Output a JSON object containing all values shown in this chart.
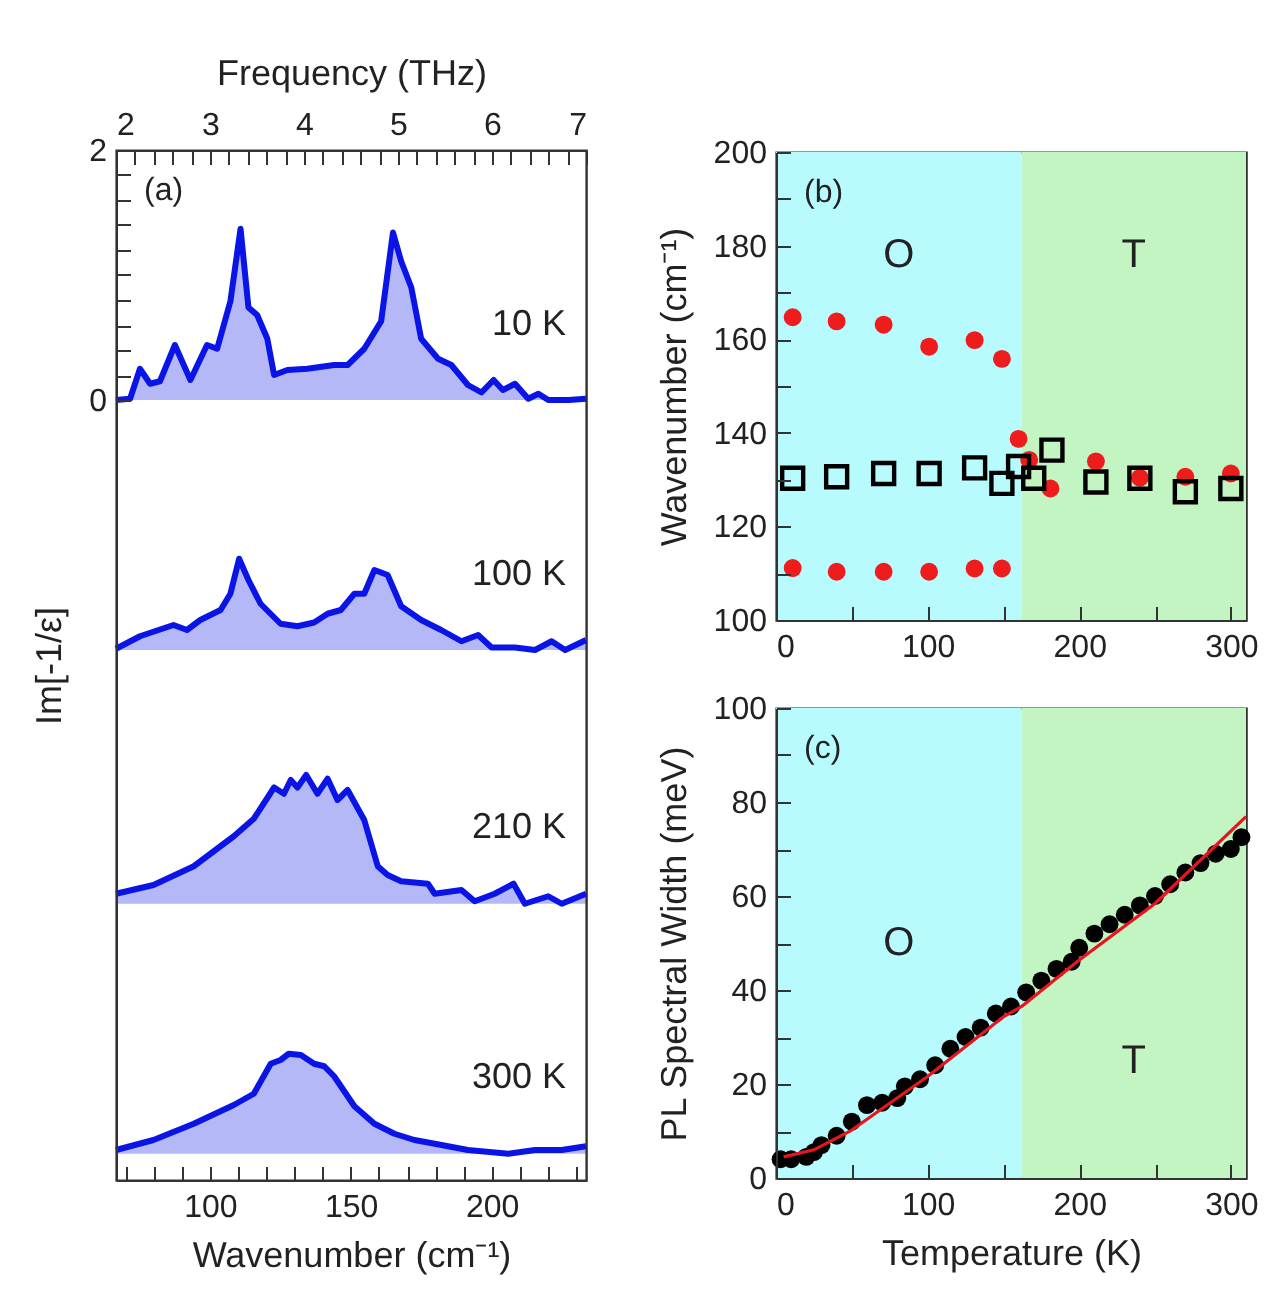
{
  "chart_data": [
    {
      "type": "line",
      "xlabel": "Wavenumber (cm⁻¹)",
      "ylabel": "Im[-1/ε]",
      "x2label": "Frequency (THz)",
      "annotations": [
        "(a)"
      ],
      "xlim": [
        66.7,
        233.5
      ],
      "ylim": [
        -6.24,
        2
      ],
      "x2lim": [
        2,
        7
      ],
      "xticks": [
        {
          "value": 70,
          "label": null
        },
        {
          "value": 80,
          "label": null
        },
        {
          "value": 90,
          "label": null
        },
        100,
        {
          "value": 110,
          "label": null
        },
        {
          "value": 120,
          "label": null
        },
        {
          "value": 130,
          "label": null
        },
        {
          "value": 140,
          "label": null
        },
        150,
        {
          "value": 160,
          "label": null
        },
        {
          "value": 170,
          "label": null
        },
        {
          "value": 180,
          "label": null
        },
        {
          "value": 190,
          "label": null
        },
        200,
        {
          "value": 210,
          "label": null
        },
        {
          "value": 220,
          "label": null
        },
        {
          "value": 230,
          "label": null
        }
      ],
      "x2ticks": [
        2,
        {
          "value": 2.2,
          "label": null
        },
        {
          "value": 2.4,
          "label": null
        },
        {
          "value": 2.6,
          "label": null
        },
        {
          "value": 2.8,
          "label": null
        },
        3,
        {
          "value": 3.2,
          "label": null
        },
        {
          "value": 3.4,
          "label": null
        },
        {
          "value": 3.6,
          "label": null
        },
        {
          "value": 3.8,
          "label": null
        },
        4,
        {
          "value": 4.2,
          "label": null
        },
        {
          "value": 4.4,
          "label": null
        },
        {
          "value": 4.6,
          "label": null
        },
        {
          "value": 4.8,
          "label": null
        },
        5,
        {
          "value": 5.2,
          "label": null
        },
        {
          "value": 5.4,
          "label": null
        },
        {
          "value": 5.6,
          "label": null
        },
        {
          "value": 5.8,
          "label": null
        },
        6,
        {
          "value": 6.2,
          "label": null
        },
        {
          "value": 6.4,
          "label": null
        },
        {
          "value": 6.6,
          "label": null
        },
        {
          "value": 6.8,
          "label": null
        },
        7
      ],
      "yticks": [
        0,
        {
          "value": 0.2,
          "label": null
        },
        {
          "value": 0.4,
          "label": null
        },
        {
          "value": 0.6,
          "label": null
        },
        {
          "value": 0.8,
          "label": null
        },
        {
          "value": 1,
          "label": null
        },
        {
          "value": 1.2,
          "label": null
        },
        {
          "value": 1.4,
          "label": null
        },
        {
          "value": 1.6,
          "label": null
        },
        {
          "value": 1.8,
          "label": null
        },
        2
      ],
      "series": [
        {
          "name": "10 K",
          "color": "#0a14e6",
          "lower": [
            0,
            0,
            0,
            0,
            0,
            0,
            0,
            0,
            0,
            0,
            0,
            0,
            0,
            0,
            0,
            0,
            0,
            0,
            0,
            0,
            0,
            0,
            0,
            0,
            0,
            0,
            0,
            0,
            0,
            0,
            0,
            0,
            0,
            0,
            0,
            0,
            0
          ],
          "upper": [
            0,
            0.01,
            0.25,
            0.13,
            0.15,
            0.44,
            0.16,
            0.44,
            0.41,
            0.79,
            1.37,
            0.74,
            0.68,
            0.49,
            0.2,
            0.24,
            0.25,
            0.28,
            0.28,
            0.41,
            0.63,
            1.34,
            1.11,
            0.9,
            0.49,
            0.33,
            0.28,
            0.12,
            0.06,
            0.16,
            0.08,
            0.13,
            0.01,
            0.05,
            0,
            0,
            0.01
          ],
          "x": [
            66.7,
            71.7,
            75.2,
            78.8,
            82.3,
            87.6,
            93.1,
            99.0,
            102.6,
            107.3,
            110.9,
            113.7,
            116.8,
            120.4,
            122.8,
            127.5,
            134.6,
            144.1,
            148.9,
            154.8,
            160.8,
            165.0,
            167.9,
            171.5,
            175.0,
            181.0,
            185.7,
            191.6,
            196.4,
            200.7,
            204.0,
            208.3,
            213.0,
            216.6,
            220.1,
            227.3,
            233.5
          ],
          "values": [
            0,
            0.01,
            0.25,
            0.13,
            0.15,
            0.44,
            0.16,
            0.44,
            0.41,
            0.79,
            1.37,
            0.74,
            0.68,
            0.49,
            0.2,
            0.24,
            0.25,
            0.28,
            0.28,
            0.41,
            0.63,
            1.34,
            1.11,
            0.9,
            0.49,
            0.33,
            0.28,
            0.12,
            0.06,
            0.16,
            0.08,
            0.13,
            0.01,
            0.05,
            0,
            0,
            0.01
          ]
        },
        {
          "name": "100 K",
          "color": "#0a14e6",
          "lower": [
            -2,
            -2,
            -2,
            -2,
            -2,
            -2,
            -2,
            -2,
            -2,
            -2,
            -2,
            -2,
            -2,
            -2,
            -2,
            -2,
            -2,
            -2,
            -2,
            -2,
            -2,
            -2,
            -2,
            -2,
            -2,
            -2,
            -2,
            -2,
            -2,
            -2
          ],
          "upper": [
            -1.99,
            -1.89,
            -1.8,
            -1.84,
            -1.76,
            -1.68,
            -1.55,
            -1.27,
            -1.44,
            -1.63,
            -1.79,
            -1.81,
            -1.78,
            -1.71,
            -1.68,
            -1.55,
            -1.55,
            -1.36,
            -1.4,
            -1.65,
            -1.76,
            -1.84,
            -1.93,
            -1.88,
            -1.98,
            -1.98,
            -2.0,
            -1.93,
            -2.0,
            -1.92
          ],
          "x": [
            66.7,
            75.2,
            87.1,
            91.9,
            96.6,
            103.8,
            107.3,
            110.4,
            113.7,
            118.0,
            125.1,
            131.1,
            137.0,
            141.8,
            146.5,
            151.3,
            154.8,
            158.4,
            163.1,
            167.9,
            175.0,
            182.1,
            189.3,
            195.2,
            200.0,
            208.3,
            215.4,
            221.3,
            226.1,
            233.5
          ],
          "values": [
            -1.99,
            -1.89,
            -1.8,
            -1.84,
            -1.76,
            -1.68,
            -1.55,
            -1.27,
            -1.44,
            -1.63,
            -1.79,
            -1.81,
            -1.78,
            -1.71,
            -1.68,
            -1.55,
            -1.55,
            -1.36,
            -1.4,
            -1.65,
            -1.76,
            -1.84,
            -1.93,
            -1.88,
            -1.98,
            -1.98,
            -2.0,
            -1.93,
            -2.0,
            -1.92
          ]
        },
        {
          "name": "210 K",
          "color": "#0a14e6",
          "lower": [
            -4.03,
            -4.03,
            -4.03,
            -4.03,
            -4.03,
            -4.03,
            -4.03,
            -4.03,
            -4.03,
            -4.03,
            -4.03,
            -4.03,
            -4.03,
            -4.03,
            -4.03,
            -4.03,
            -4.03,
            -4.03,
            -4.03,
            -4.03,
            -4.03,
            -4.03,
            -4.03,
            -4.03,
            -4.03,
            -4.03,
            -4.03,
            -4.03
          ],
          "upper": [
            -3.95,
            -3.88,
            -3.73,
            -3.49,
            -3.35,
            -3.1,
            -3.15,
            -3.04,
            -3.1,
            -3.0,
            -3.15,
            -3.03,
            -3.2,
            -3.12,
            -3.36,
            -3.73,
            -3.8,
            -3.85,
            -3.87,
            -3.95,
            -3.92,
            -4.01,
            -3.95,
            -3.87,
            -4.03,
            -3.97,
            -4.03,
            -3.95
          ],
          "x": [
            66.7,
            80.0,
            94.3,
            108.5,
            115.6,
            122.8,
            126.3,
            128.7,
            131.1,
            134.2,
            138.2,
            141.8,
            145.3,
            148.9,
            154.8,
            159.6,
            163.1,
            167.9,
            177.4,
            179.8,
            189.3,
            194.0,
            201.1,
            207.8,
            211.8,
            220.1,
            224.9,
            233.5
          ],
          "values": [
            -3.95,
            -3.88,
            -3.73,
            -3.49,
            -3.35,
            -3.1,
            -3.15,
            -3.04,
            -3.1,
            -3.0,
            -3.15,
            -3.03,
            -3.2,
            -3.12,
            -3.36,
            -3.73,
            -3.8,
            -3.85,
            -3.87,
            -3.95,
            -3.92,
            -4.01,
            -3.95,
            -3.87,
            -4.03,
            -3.97,
            -4.03,
            -3.95
          ]
        },
        {
          "name": "300 K",
          "color": "#0a14e6",
          "lower": [
            -6.03,
            -6.03,
            -6.03,
            -6.03,
            -6.03,
            -6.03,
            -6.03,
            -6.03,
            -6.03,
            -6.03,
            -6.03,
            -6.03,
            -6.03,
            -6.03,
            -6.03,
            -6.03,
            -6.03,
            -6.03,
            -6.03,
            -6.03,
            -6.03,
            -6.03
          ],
          "upper": [
            -6.0,
            -5.92,
            -5.79,
            -5.64,
            -5.55,
            -5.31,
            -5.28,
            -5.23,
            -5.24,
            -5.31,
            -5.33,
            -5.41,
            -5.65,
            -5.79,
            -5.87,
            -5.92,
            -5.95,
            -6.0,
            -6.03,
            -6.0,
            -6.0,
            -5.97
          ],
          "x": [
            66.7,
            80.0,
            94.3,
            108.5,
            115.6,
            121.6,
            125.1,
            128.0,
            132.3,
            137.0,
            140.6,
            144.1,
            151.3,
            158.4,
            165.5,
            172.6,
            179.8,
            191.6,
            205.9,
            215.4,
            224.9,
            233.5
          ],
          "values": [
            -6.0,
            -5.92,
            -5.79,
            -5.64,
            -5.55,
            -5.31,
            -5.28,
            -5.23,
            -5.24,
            -5.31,
            -5.33,
            -5.41,
            -5.65,
            -5.79,
            -5.87,
            -5.92,
            -5.95,
            -6.0,
            -6.03,
            -6.0,
            -6.0,
            -5.97
          ]
        }
      ]
    },
    {
      "type": "scatter",
      "ylabel": "Wavenumber (cm⁻¹)",
      "annotations": [
        "(b)"
      ],
      "xlim": [
        0,
        310
      ],
      "ylim": [
        100,
        200
      ],
      "xticks": [
        0,
        {
          "value": 50,
          "label": null
        },
        100,
        {
          "value": 150,
          "label": null
        },
        200,
        {
          "value": 250,
          "label": null
        },
        300
      ],
      "yticks": [
        100,
        {
          "value": 110,
          "label": null
        },
        120,
        {
          "value": 130,
          "label": null
        },
        140,
        {
          "value": 150,
          "label": null
        },
        160,
        {
          "value": 170,
          "label": null
        },
        180,
        {
          "value": 190,
          "label": null
        },
        200
      ],
      "bands": [
        {
          "axis": "x",
          "from": 0,
          "to": 162,
          "color": "#b8fbff",
          "label": "O"
        },
        {
          "axis": "x",
          "from": 162,
          "to": 310,
          "color": "#c2f5c2",
          "label": "T"
        }
      ],
      "series": [
        {
          "color": "#ee1c1c",
          "marker": "circle",
          "x": [
            11,
            40,
            71,
            101,
            131,
            149,
            11,
            40,
            71,
            101,
            131,
            149,
            160,
            167,
            181,
            211,
            240,
            270,
            300
          ],
          "values": [
            164.7,
            163.8,
            163.1,
            158.4,
            159.8,
            155.8,
            111.1,
            110.3,
            110.3,
            110.3,
            111.0,
            111.0,
            138.7,
            134.2,
            128.1,
            133.9,
            130.4,
            130.6,
            131.3
          ]
        },
        {
          "color": "#000000",
          "marker": "square",
          "x": [
            11,
            40,
            71,
            101,
            131,
            149,
            160,
            170,
            182,
            211,
            240,
            270,
            300
          ],
          "values": [
            130.3,
            130.6,
            131.3,
            131.3,
            132.5,
            129.2,
            132.8,
            130.3,
            136.3,
            129.5,
            130.3,
            127.4,
            128.1
          ]
        }
      ]
    },
    {
      "type": "scatter",
      "xlabel": "Temperature (K)",
      "ylabel": "PL Spectral Width (meV)",
      "annotations": [
        "(c)"
      ],
      "xlim": [
        0,
        310
      ],
      "ylim": [
        0,
        100
      ],
      "xticks": [
        0,
        {
          "value": 50,
          "label": null
        },
        100,
        {
          "value": 150,
          "label": null
        },
        200,
        {
          "value": 250,
          "label": null
        },
        300
      ],
      "yticks": [
        0,
        {
          "value": 10,
          "label": null
        },
        20,
        {
          "value": 30,
          "label": null
        },
        40,
        {
          "value": 50,
          "label": null
        },
        60,
        {
          "value": 70,
          "label": null
        },
        80,
        {
          "value": 90,
          "label": null
        },
        100
      ],
      "bands": [
        {
          "axis": "x",
          "from": 0,
          "to": 162,
          "color": "#b8fbff",
          "label": "O"
        },
        {
          "axis": "x",
          "from": 162,
          "to": 310,
          "color": "#c2f5c2",
          "label": "T"
        }
      ],
      "series": [
        {
          "color": "#000000",
          "marker": "circle",
          "x": [
            3,
            10,
            20,
            25,
            30,
            40,
            50,
            60,
            70,
            80,
            85,
            95,
            105,
            115,
            125,
            135,
            145,
            155,
            165,
            175,
            185,
            195,
            200,
            210,
            220,
            230,
            240,
            250,
            260,
            270,
            280,
            290,
            300,
            307
          ],
          "values": [
            4,
            4,
            4.5,
            5.5,
            7,
            9,
            12,
            15.5,
            16,
            17,
            19.5,
            21,
            24,
            27.5,
            30,
            32,
            35,
            36.5,
            39.5,
            42,
            44.5,
            46,
            49,
            52,
            54,
            56,
            58,
            60,
            62.5,
            65,
            67,
            69,
            70,
            72.5
          ]
        },
        {
          "type": "line",
          "color": "#e8141e",
          "x": [
            5,
            25,
            50,
            100,
            150,
            162,
            200,
            250,
            310
          ],
          "values": [
            4.5,
            6,
            10.2,
            21.6,
            34.3,
            36.5,
            46.4,
            58.4,
            76.9
          ]
        }
      ]
    }
  ]
}
